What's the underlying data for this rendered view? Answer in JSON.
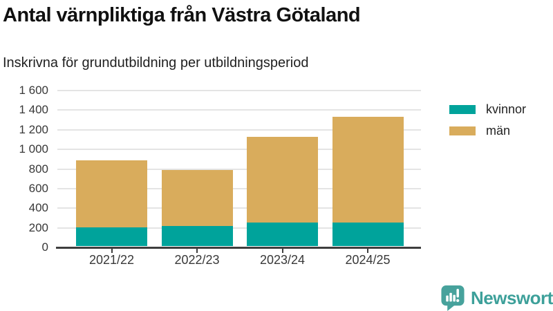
{
  "header": {
    "title": "Antal värnpliktiga från Västra Götaland",
    "subtitle": "Inskrivna för grundutbildning per utbildningsperiod"
  },
  "chart_data": {
    "type": "bar",
    "stacked": true,
    "title": "Antal värnpliktiga från Västra Götaland",
    "subtitle": "Inskrivna för grundutbildning per utbildningsperiod",
    "categories": [
      "2021/22",
      "2022/23",
      "2023/24",
      "2024/25"
    ],
    "series": [
      {
        "name": "kvinnor",
        "color": "#00a39b",
        "values": [
          195,
          205,
          240,
          240
        ]
      },
      {
        "name": "män",
        "color": "#d9ac5c",
        "values": [
          685,
          575,
          880,
          1085
        ]
      }
    ],
    "stack_totals": [
      880,
      780,
      1120,
      1325
    ],
    "ylim": [
      0,
      1600
    ],
    "yticks": [
      0,
      200,
      400,
      600,
      800,
      1000,
      1200,
      1400,
      1600
    ],
    "ytick_labels": [
      "0",
      "200",
      "400",
      "600",
      "800",
      "1 000",
      "1 200",
      "1 400",
      "1 600"
    ],
    "grid": true,
    "legend_position": "top-right"
  },
  "footer": {
    "brand": "Newsworthy",
    "brand_text_color": "#3da09a",
    "brand_icon": "bar-chart-speech-bubble-icon",
    "brand_icon_color": "#47a29c"
  }
}
